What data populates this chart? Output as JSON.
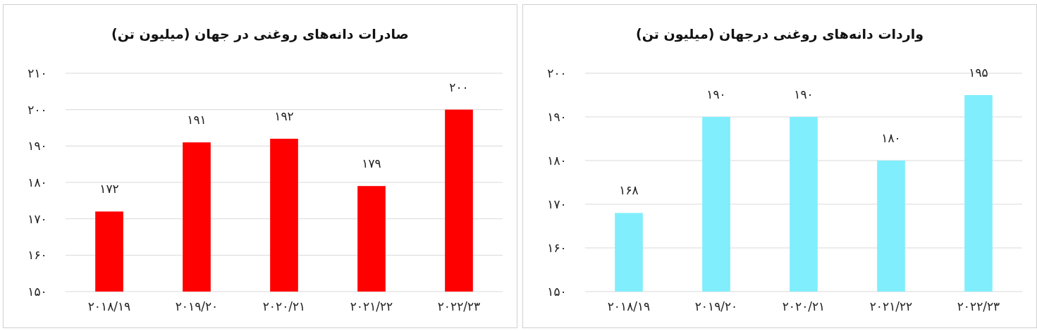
{
  "chart_data": [
    {
      "type": "bar",
      "title": "صادرات دانه‌های روغنی در جهان (میلیون تن)",
      "categories": [
        "۲۰۱۸/۱۹",
        "۲۰۱۹/۲۰",
        "۲۰۲۰/۲۱",
        "۲۰۲۱/۲۲",
        "۲۰۲۲/۲۳"
      ],
      "values": [
        172,
        191,
        192,
        179,
        200
      ],
      "value_labels": [
        "۱۷۲",
        "۱۹۱",
        "۱۹۲",
        "۱۷۹",
        "۲۰۰"
      ],
      "color": "#ff0000",
      "ylim": [
        150,
        210
      ],
      "yticks": [
        {
          "value": 150,
          "label": "۱۵۰"
        },
        {
          "value": 160,
          "label": "۱۶۰"
        },
        {
          "value": 170,
          "label": "۱۷۰"
        },
        {
          "value": 180,
          "label": "۱۸۰"
        },
        {
          "value": 190,
          "label": "۱۹۰"
        },
        {
          "value": 200,
          "label": "۲۰۰"
        },
        {
          "value": 210,
          "label": "۲۱۰"
        }
      ],
      "grid": "y"
    },
    {
      "type": "bar",
      "title": "واردات دانه‌های روغنی درجهان (میلیون تن)",
      "categories": [
        "۲۰۱۸/۱۹",
        "۲۰۱۹/۲۰",
        "۲۰۲۰/۲۱",
        "۲۰۲۱/۲۲",
        "۲۰۲۲/۲۳"
      ],
      "values": [
        168,
        190,
        190,
        180,
        195
      ],
      "value_labels": [
        "۱۶۸",
        "۱۹۰",
        "۱۹۰",
        "۱۸۰",
        "۱۹۵"
      ],
      "color": "#80eefc",
      "ylim": [
        150,
        200
      ],
      "yticks": [
        {
          "value": 150,
          "label": "۱۵۰"
        },
        {
          "value": 160,
          "label": "۱۶۰"
        },
        {
          "value": 170,
          "label": "۱۷۰"
        },
        {
          "value": 180,
          "label": "۱۸۰"
        },
        {
          "value": 190,
          "label": "۱۹۰"
        },
        {
          "value": 200,
          "label": "۲۰۰"
        }
      ],
      "grid": "y"
    }
  ]
}
